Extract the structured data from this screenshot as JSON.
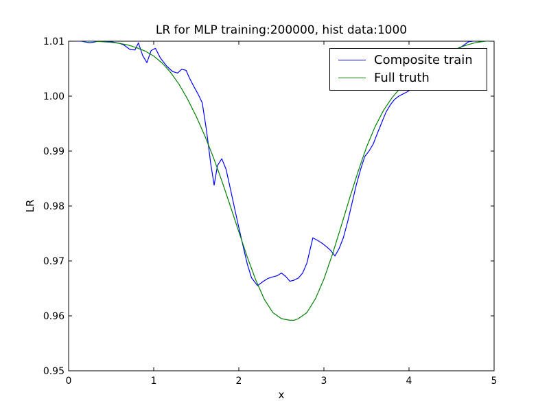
{
  "chart_data": {
    "type": "line",
    "title": "LR for MLP training:200000, hist data:1000",
    "xlabel": "x",
    "ylabel": "LR",
    "xlim": [
      0,
      5
    ],
    "ylim": [
      0.95,
      1.01
    ],
    "xticks": [
      0,
      1,
      2,
      3,
      4,
      5
    ],
    "xtick_labels": [
      "0",
      "1",
      "2",
      "3",
      "4",
      "5"
    ],
    "yticks": [
      0.95,
      0.96,
      0.97,
      0.98,
      0.99,
      1.0,
      1.01
    ],
    "ytick_labels": [
      "0.95",
      "0.96",
      "0.97",
      "0.98",
      "0.99",
      "1.00",
      "1.01"
    ],
    "grid": false,
    "legend_position": "top-right",
    "series": [
      {
        "name": "Composite train",
        "color": "#0000ff",
        "x": [
          0.0,
          0.15,
          0.25,
          0.35,
          0.5,
          0.6,
          0.65,
          0.72,
          0.78,
          0.82,
          0.87,
          0.92,
          0.97,
          1.02,
          1.08,
          1.15,
          1.22,
          1.28,
          1.33,
          1.38,
          1.42,
          1.47,
          1.52,
          1.57,
          1.62,
          1.67,
          1.71,
          1.75,
          1.8,
          1.85,
          1.9,
          1.95,
          2.0,
          2.05,
          2.1,
          2.15,
          2.22,
          2.28,
          2.34,
          2.4,
          2.45,
          2.5,
          2.55,
          2.6,
          2.65,
          2.7,
          2.75,
          2.8,
          2.87,
          2.93,
          2.98,
          3.03,
          3.08,
          3.13,
          3.18,
          3.23,
          3.28,
          3.33,
          3.38,
          3.43,
          3.48,
          3.53,
          3.58,
          3.63,
          3.68,
          3.73,
          3.78,
          3.83,
          3.88,
          3.93,
          3.98,
          4.03,
          4.08,
          4.13,
          4.2,
          4.3,
          4.4,
          4.5,
          4.6,
          4.7,
          4.8,
          4.9,
          5.0
        ],
        "y": [
          1.0101,
          1.01,
          1.0097,
          1.01,
          1.0099,
          1.0096,
          1.0093,
          1.0085,
          1.0084,
          1.0097,
          1.0074,
          1.0061,
          1.0083,
          1.0087,
          1.0069,
          1.0055,
          1.0045,
          1.0042,
          1.0049,
          1.0047,
          1.0033,
          1.0018,
          1.0004,
          0.9988,
          0.9938,
          0.9877,
          0.9838,
          0.9874,
          0.9886,
          0.9867,
          0.9832,
          0.9796,
          0.9761,
          0.9727,
          0.9694,
          0.9669,
          0.9655,
          0.9662,
          0.9668,
          0.9671,
          0.9673,
          0.9678,
          0.9672,
          0.9663,
          0.9665,
          0.9669,
          0.9678,
          0.9696,
          0.9742,
          0.9737,
          0.9732,
          0.9726,
          0.9719,
          0.9709,
          0.9723,
          0.9743,
          0.9772,
          0.9805,
          0.9838,
          0.9866,
          0.989,
          0.99,
          0.9913,
          0.9933,
          0.9952,
          0.9971,
          0.9984,
          0.9994,
          1.0,
          1.0004,
          1.0008,
          1.0013,
          1.0016,
          1.002,
          1.003,
          1.0045,
          1.006,
          1.0072,
          1.0088,
          1.0099,
          1.0101,
          1.0101,
          1.0101
        ]
      },
      {
        "name": "Full truth",
        "color": "#008000",
        "x": [
          0.0,
          0.1,
          0.2,
          0.3,
          0.4,
          0.5,
          0.6,
          0.7,
          0.8,
          0.9,
          1.0,
          1.1,
          1.2,
          1.3,
          1.4,
          1.5,
          1.6,
          1.7,
          1.8,
          1.9,
          2.0,
          2.1,
          2.2,
          2.3,
          2.4,
          2.5,
          2.6,
          2.65,
          2.7,
          2.8,
          2.9,
          3.0,
          3.1,
          3.2,
          3.3,
          3.4,
          3.5,
          3.6,
          3.7,
          3.8,
          3.9,
          4.0,
          4.1,
          4.2,
          4.3,
          4.4,
          4.5,
          4.6,
          4.7,
          4.8,
          4.9,
          5.0
        ],
        "y": [
          1.0101,
          1.0101,
          1.01,
          1.01,
          1.0099,
          1.0098,
          1.0096,
          1.0093,
          1.0088,
          1.0082,
          1.0073,
          1.006,
          1.0043,
          1.0021,
          0.9994,
          0.9963,
          0.9928,
          0.9889,
          0.9846,
          0.98,
          0.9753,
          0.9707,
          0.9665,
          0.963,
          0.9606,
          0.9595,
          0.9592,
          0.9592,
          0.9595,
          0.9606,
          0.9631,
          0.9667,
          0.9712,
          0.9762,
          0.9813,
          0.9862,
          0.9907,
          0.9944,
          0.9974,
          0.9997,
          1.0015,
          1.003,
          1.0042,
          1.0052,
          1.0063,
          1.0073,
          1.0082,
          1.0089,
          1.0094,
          1.0098,
          1.01,
          1.0101
        ]
      }
    ]
  }
}
